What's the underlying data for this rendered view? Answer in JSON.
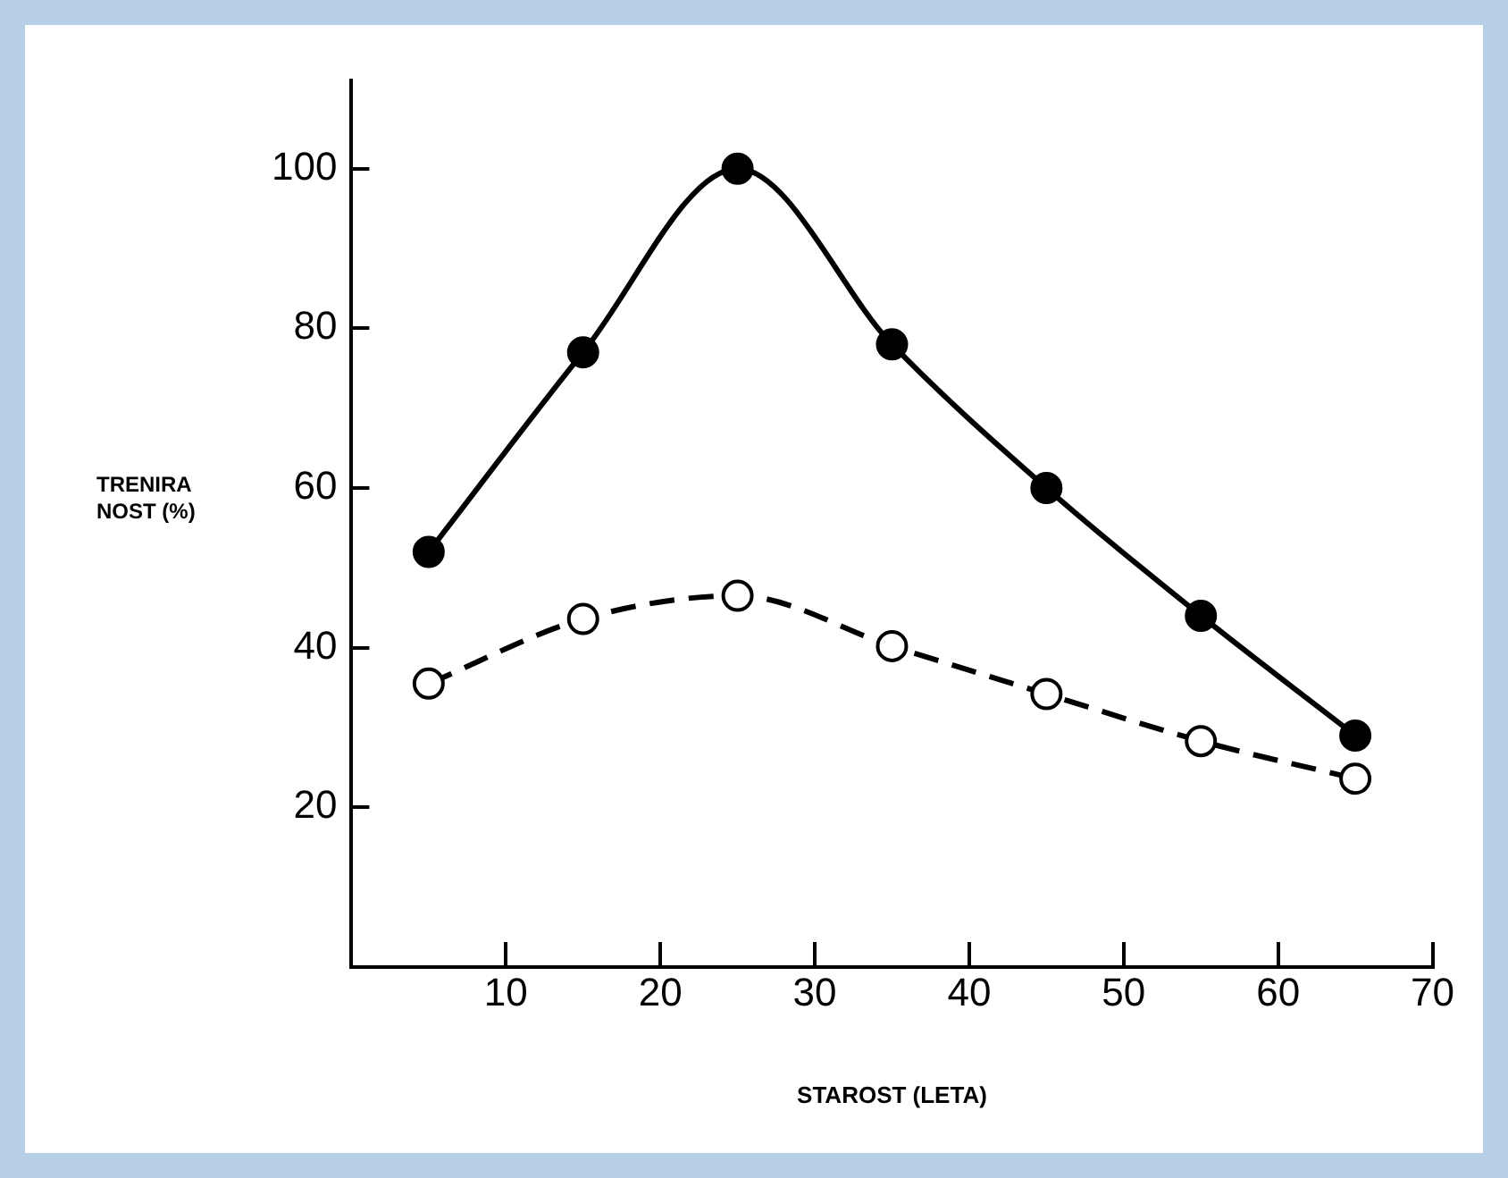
{
  "chart_data": {
    "type": "line",
    "xlabel": "STAROST (LETA)",
    "ylabel": "TRENIRA NOST (%)",
    "x": [
      5,
      15,
      25,
      35,
      45,
      55,
      65
    ],
    "series": [
      {
        "color": "#000000",
        "values": [
          52,
          77,
          100,
          78,
          60,
          44,
          29
        ],
        "line_style": "solid"
      },
      {
        "color": "#000000",
        "values": [
          35.5,
          43.6,
          46.5,
          40.2,
          34.2,
          28.3,
          23.6
        ],
        "line_style": "dashed"
      }
    ],
    "xlim": [
      0,
      70
    ],
    "xticks": [
      10,
      20,
      30,
      40,
      50,
      60,
      70
    ],
    "ylim": [
      0,
      111
    ],
    "yticks": [
      20,
      40,
      60,
      80,
      100
    ],
    "grid": false,
    "legend": false,
    "marker": "circle"
  }
}
